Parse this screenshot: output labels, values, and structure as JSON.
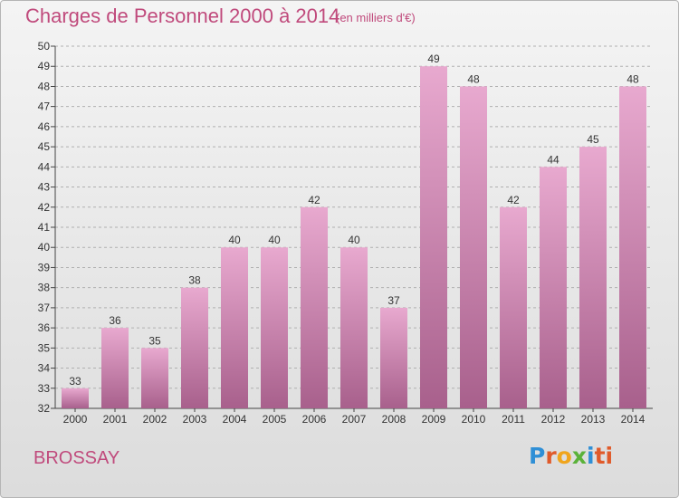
{
  "header": {
    "title": "Charges de Personnel 2000 à 2014",
    "subtitle": "(en milliers d'€)"
  },
  "footer": {
    "commune": "BROSSAY",
    "logo_letters": [
      "P",
      "r",
      "o",
      "x",
      "i",
      "ti"
    ]
  },
  "colors": {
    "accent": "#c04a7c",
    "bar_top": "#e8a9cf",
    "bar_bottom": "#a8608c",
    "grid": "#b0b0b0"
  },
  "chart_data": {
    "type": "bar",
    "title": "Charges de Personnel 2000 à 2014",
    "subtitle": "(en milliers d'€)",
    "xlabel": "",
    "ylabel": "",
    "categories": [
      "2000",
      "2001",
      "2002",
      "2003",
      "2004",
      "2005",
      "2006",
      "2007",
      "2008",
      "2009",
      "2010",
      "2011",
      "2012",
      "2013",
      "2014"
    ],
    "values": [
      33,
      36,
      35,
      38,
      40,
      40,
      42,
      40,
      37,
      49,
      48,
      42,
      44,
      45,
      48
    ],
    "ylim": [
      32,
      50
    ],
    "yticks": [
      32,
      33,
      34,
      35,
      36,
      37,
      38,
      39,
      40,
      41,
      42,
      43,
      44,
      45,
      46,
      47,
      48,
      49,
      50
    ],
    "grid": true,
    "data_labels": true
  }
}
